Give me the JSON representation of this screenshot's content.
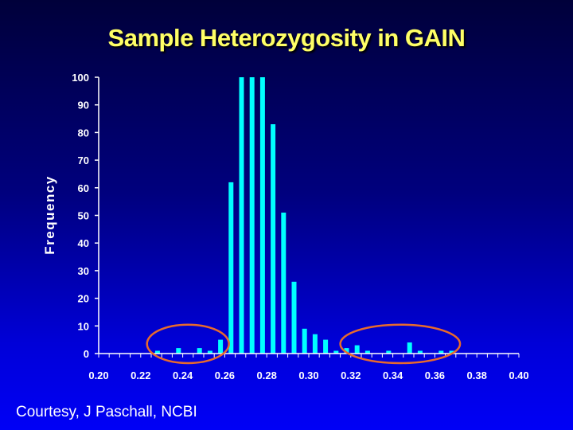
{
  "slide": {
    "title": "Sample Heterozygosity in GAIN",
    "credit": "Courtesy, J Paschall, NCBI"
  },
  "colors": {
    "title": "#ffff66",
    "bar": "#00ffff",
    "axis": "#ffffff",
    "text": "#ffffff",
    "ellipse": "#e86a2c"
  },
  "chart_data": {
    "type": "bar",
    "title": "",
    "xlabel": "",
    "ylabel": "Frequency",
    "ylim": [
      0,
      100
    ],
    "xlim": [
      0.2,
      0.4
    ],
    "y_ticks": [
      "0",
      "10",
      "20",
      "30",
      "40",
      "50",
      "60",
      "70",
      "80",
      "90",
      "100"
    ],
    "x_ticks": [
      "0.20",
      "0.22",
      "0.24",
      "0.26",
      "0.28",
      "0.30",
      "0.32",
      "0.34",
      "0.36",
      "0.38",
      "0.40"
    ],
    "grid": false,
    "x": [
      0.228,
      0.233,
      0.238,
      0.243,
      0.248,
      0.253,
      0.258,
      0.263,
      0.268,
      0.273,
      0.278,
      0.283,
      0.288,
      0.293,
      0.298,
      0.303,
      0.308,
      0.313,
      0.318,
      0.323,
      0.328,
      0.333,
      0.338,
      0.343,
      0.348,
      0.353,
      0.358,
      0.363,
      0.368
    ],
    "values": [
      1,
      0,
      2,
      0,
      2,
      1,
      5,
      62,
      100,
      100,
      100,
      83,
      51,
      26,
      9,
      7,
      5,
      1,
      2,
      3,
      1,
      0,
      1,
      0,
      4,
      1,
      0,
      1,
      1
    ],
    "highlights": [
      {
        "x_range": [
          0.223,
          0.262
        ],
        "y_range": [
          0,
          7
        ]
      },
      {
        "x_range": [
          0.315,
          0.372
        ],
        "y_range": [
          0,
          7
        ]
      }
    ]
  }
}
